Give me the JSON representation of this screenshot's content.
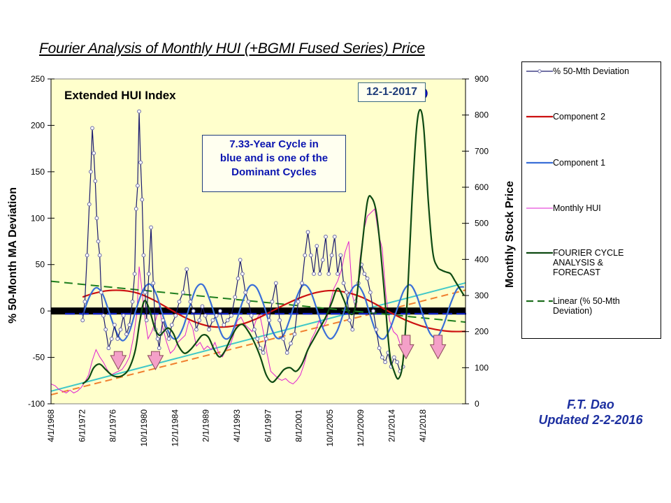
{
  "title": "Fourier Analysis of Monthly HUI (+BGMI Fused Series)  Price",
  "credit": {
    "author": "F.T. Dao",
    "updated": "Updated 2-2-2016"
  },
  "annotations": {
    "index_label": "Extended HUI  Index",
    "cycle_note": [
      "7.33-Year Cycle in",
      "blue and  is one of the",
      "Dominant Cycles"
    ],
    "date_label": "12-1-2017"
  },
  "legend": [
    {
      "label": "% 50-Mth  Deviation",
      "color": "#1a1a6e",
      "style": "line-marker"
    },
    {
      "label": "Component 2",
      "color": "#cc1010",
      "style": "line"
    },
    {
      "label": "Component 1",
      "color": "#3a6fd8",
      "style": "line"
    },
    {
      "label": "Monthly HUI",
      "color": "#e020d0",
      "style": "thin-line"
    },
    {
      "label": "FOURIER CYCLE ANALYSIS  & FORECAST",
      "color": "#0d4a12",
      "style": "line"
    },
    {
      "label": "Linear (% 50-Mth Deviation)",
      "color": "#1e6e1e",
      "style": "dashed"
    }
  ],
  "chart_data": {
    "type": "line",
    "title": "Fourier Analysis of Monthly HUI (+BGMI Fused Series)  Price",
    "xlabel": "",
    "ylabel": "% 50-Month  MA Deviation",
    "y2label": "Monthly Stock Price",
    "ylim": [
      -100,
      250
    ],
    "y2lim": [
      0,
      900
    ],
    "yticks": [
      -100,
      -50,
      0,
      50,
      100,
      150,
      200,
      250
    ],
    "y2ticks": [
      0,
      100,
      200,
      300,
      400,
      500,
      600,
      700,
      800,
      900
    ],
    "xlim": [
      1968.25,
      2024.0
    ],
    "xtick_labels": [
      "4/1/1968",
      "6/1/1972",
      "8/1/1976",
      "10/1/1980",
      "12/1/1984",
      "2/1/1989",
      "4/1/1993",
      "6/1/1997",
      "8/1/2001",
      "10/1/2005",
      "12/1/2009",
      "2/1/2014",
      "4/1/2018"
    ],
    "xtick_values": [
      1968.25,
      1972.42,
      1976.58,
      1980.75,
      1984.92,
      1989.08,
      1993.25,
      1997.42,
      2001.58,
      2005.75,
      2009.92,
      2014.08,
      2018.25
    ],
    "grid": false,
    "legend_position": "right",
    "series": [
      {
        "name": "% 50-Mth  Deviation",
        "axis": "left",
        "x": [
          1972.5,
          1972.8,
          1973.1,
          1973.4,
          1973.6,
          1973.8,
          1974.0,
          1974.2,
          1974.4,
          1974.6,
          1974.8,
          1975.0,
          1975.3,
          1975.6,
          1976.0,
          1976.4,
          1976.8,
          1977.2,
          1977.6,
          1978.0,
          1978.4,
          1978.8,
          1979.2,
          1979.5,
          1979.7,
          1979.9,
          1980.1,
          1980.3,
          1980.5,
          1980.7,
          1980.9,
          1981.1,
          1981.4,
          1981.7,
          1982.0,
          1982.3,
          1982.6,
          1982.8,
          1983.0,
          1983.3,
          1983.7,
          1984.1,
          1984.5,
          1985.0,
          1985.5,
          1986.0,
          1986.5,
          1987.0,
          1987.4,
          1987.8,
          1988.2,
          1988.6,
          1989.0,
          1989.5,
          1990.0,
          1990.5,
          1991.0,
          1991.5,
          1992.0,
          1992.5,
          1993.0,
          1993.4,
          1993.7,
          1994.0,
          1994.4,
          1994.8,
          1995.2,
          1995.6,
          1996.0,
          1996.4,
          1996.8,
          1997.2,
          1997.6,
          1998.0,
          1998.5,
          1999.0,
          1999.5,
          2000.0,
          2000.5,
          2001.0,
          2001.5,
          2002.0,
          2002.4,
          2002.8,
          2003.2,
          2003.6,
          2004.0,
          2004.4,
          2004.8,
          2005.2,
          2005.6,
          2006.0,
          2006.4,
          2006.8,
          2007.2,
          2007.6,
          2008.0,
          2008.4,
          2008.8,
          2009.2,
          2009.6,
          2010.0,
          2010.4,
          2010.8,
          2011.2,
          2011.6,
          2012.0,
          2012.4,
          2012.8,
          2013.2,
          2013.6,
          2014.0,
          2014.4,
          2014.8,
          2015.2,
          2015.6
        ],
        "y": [
          -10,
          10,
          60,
          115,
          150,
          197,
          170,
          140,
          100,
          75,
          60,
          20,
          -5,
          -20,
          -40,
          -30,
          -15,
          -30,
          -20,
          -5,
          -25,
          -15,
          10,
          40,
          110,
          135,
          215,
          160,
          120,
          60,
          20,
          -10,
          40,
          90,
          30,
          -20,
          -30,
          -40,
          -25,
          -10,
          -20,
          -30,
          -15,
          -5,
          10,
          20,
          45,
          10,
          0,
          -20,
          -10,
          5,
          -5,
          -20,
          -10,
          -5,
          0,
          -15,
          -10,
          -5,
          15,
          35,
          55,
          40,
          20,
          10,
          -5,
          -20,
          -30,
          -40,
          -45,
          -30,
          -10,
          10,
          30,
          -10,
          -30,
          -45,
          -35,
          -25,
          10,
          30,
          60,
          85,
          60,
          40,
          70,
          40,
          55,
          80,
          40,
          60,
          80,
          40,
          60,
          30,
          20,
          -10,
          -20,
          10,
          30,
          50,
          40,
          35,
          20,
          0,
          -20,
          -40,
          -50,
          -55,
          -45,
          -60,
          -50,
          -55,
          -65,
          -60
        ]
      },
      {
        "name": "Component 2",
        "axis": "left",
        "x": [
          1972.5,
          1974,
          1976,
          1978,
          1980,
          1982,
          1984,
          1986,
          1988,
          1990,
          1992,
          1994,
          1996,
          1998,
          2000,
          2002,
          2004,
          2006,
          2008,
          2010,
          2012,
          2014,
          2016,
          2018,
          2020,
          2022,
          2024
        ],
        "y": [
          15,
          19,
          22,
          22,
          19,
          12,
          3,
          -6,
          -13,
          -17,
          -17,
          -14,
          -8,
          0,
          8,
          15,
          20,
          22,
          20,
          15,
          7,
          -2,
          -10,
          -16,
          -20,
          -22,
          -22
        ]
      },
      {
        "name": "Component 1",
        "axis": "left",
        "x": [
          1972.5,
          1973.4,
          1974.3,
          1975.2,
          1976.1,
          1977.0,
          1977.9,
          1978.8,
          1979.7,
          1980.6,
          1981.5,
          1982.4,
          1983.3,
          1984.2,
          1985.1,
          1986.0,
          1986.9,
          1987.8,
          1988.7,
          1989.6,
          1990.5,
          1991.4,
          1992.3,
          1993.2,
          1994.1,
          1995.0,
          1995.9,
          1996.8,
          1997.7,
          1998.6,
          1999.5,
          2000.4,
          2001.3,
          2002.2,
          2003.1,
          2004.0,
          2004.9,
          2005.8,
          2006.7,
          2007.6,
          2008.5,
          2009.4,
          2010.3,
          2011.2,
          2012.1,
          2013.0,
          2013.9,
          2014.8,
          2015.7,
          2016.6,
          2017.5,
          2018.4,
          2019.3,
          2020.2,
          2021.1,
          2022.0,
          2022.9,
          2023.8
        ],
        "y": [
          -5,
          15,
          25,
          18,
          -2,
          -22,
          -32,
          -22,
          2,
          22,
          29,
          18,
          -5,
          -25,
          -30,
          -18,
          5,
          25,
          28,
          12,
          -10,
          -28,
          -28,
          -10,
          12,
          27,
          25,
          8,
          -15,
          -29,
          -26,
          -8,
          15,
          28,
          22,
          2,
          -20,
          -30,
          -22,
          -2,
          20,
          28,
          18,
          -5,
          -25,
          -30,
          -18,
          2,
          22,
          28,
          15,
          -8,
          -25,
          -28,
          -14,
          8,
          24,
          26
        ]
      },
      {
        "name": "Monthly HUI",
        "axis": "right",
        "x": [
          1968.25,
          1968.8,
          1969.3,
          1969.8,
          1970.3,
          1970.8,
          1971.3,
          1971.8,
          1972.3,
          1972.8,
          1973.3,
          1973.8,
          1974.3,
          1974.8,
          1975.3,
          1975.8,
          1976.3,
          1976.8,
          1977.3,
          1977.8,
          1978.3,
          1978.8,
          1979.3,
          1979.8,
          1980.1,
          1980.4,
          1980.8,
          1981.3,
          1981.8,
          1982.3,
          1982.8,
          1983.3,
          1983.8,
          1984.3,
          1984.8,
          1985.3,
          1985.8,
          1986.3,
          1986.8,
          1987.3,
          1987.8,
          1988.3,
          1988.8,
          1989.3,
          1989.8,
          1990.3,
          1990.8,
          1991.3,
          1991.8,
          1992.3,
          1992.8,
          1993.3,
          1993.8,
          1994.3,
          1994.8,
          1995.3,
          1995.8,
          1996.3,
          1996.8,
          1997.3,
          1997.8,
          1998.3,
          1998.8,
          1999.3,
          1999.8,
          2000.3,
          2000.8,
          2001.3,
          2001.8,
          2002.3,
          2002.8,
          2003.3,
          2003.8,
          2004.3,
          2004.8,
          2005.3,
          2005.8,
          2006.3,
          2006.8,
          2007.3,
          2007.8,
          2008.3,
          2008.8,
          2009.3,
          2009.8,
          2010.3,
          2010.8,
          2011.3,
          2011.8,
          2012.3,
          2012.8,
          2013.3,
          2013.8,
          2014.3,
          2014.8,
          2015.3,
          2015.6
        ],
        "y": [
          55,
          50,
          40,
          35,
          30,
          38,
          30,
          35,
          45,
          60,
          80,
          120,
          150,
          130,
          115,
          95,
          80,
          85,
          90,
          95,
          110,
          130,
          180,
          250,
          380,
          330,
          250,
          180,
          200,
          230,
          270,
          210,
          170,
          140,
          150,
          170,
          180,
          190,
          230,
          210,
          160,
          170,
          150,
          160,
          150,
          170,
          140,
          130,
          150,
          160,
          190,
          230,
          240,
          220,
          210,
          200,
          230,
          250,
          200,
          140,
          90,
          80,
          70,
          65,
          70,
          60,
          55,
          65,
          80,
          110,
          150,
          180,
          200,
          230,
          210,
          230,
          280,
          320,
          340,
          370,
          420,
          450,
          300,
          260,
          400,
          480,
          520,
          530,
          540,
          470,
          430,
          300,
          230,
          200,
          190,
          160,
          150
        ]
      },
      {
        "name": "FOURIER CYCLE ANALYSIS  & FORECAST",
        "axis": "right",
        "x": [
          1972.5,
          1973.3,
          1974.0,
          1974.8,
          1975.6,
          1976.4,
          1977.2,
          1978.0,
          1978.8,
          1979.6,
          1980.2,
          1980.8,
          1981.5,
          1982.2,
          1982.8,
          1983.4,
          1984.0,
          1984.7,
          1985.4,
          1986.2,
          1987.0,
          1987.8,
          1988.6,
          1989.4,
          1990.2,
          1990.9,
          1991.6,
          1992.4,
          1993.2,
          1994.0,
          1994.8,
          1995.6,
          1996.4,
          1997.2,
          1998.0,
          1998.8,
          1999.6,
          2000.4,
          2001.2,
          2002.0,
          2002.8,
          2003.6,
          2004.4,
          2005.2,
          2006.0,
          2006.8,
          2007.6,
          2008.4,
          2009.2,
          2010.0,
          2010.8,
          2011.4,
          2012.0,
          2012.6,
          2013.2,
          2013.8,
          2014.4,
          2015.0,
          2015.6,
          2016.2,
          2016.8,
          2017.4,
          2017.9,
          2018.4,
          2019.0,
          2019.6,
          2020.2,
          2020.8,
          2021.4,
          2022.0,
          2022.6,
          2023.2,
          2023.8
        ],
        "y": [
          55,
          70,
          100,
          110,
          95,
          80,
          75,
          80,
          100,
          150,
          230,
          285,
          260,
          210,
          190,
          200,
          210,
          195,
          160,
          140,
          150,
          170,
          190,
          185,
          150,
          130,
          145,
          180,
          210,
          220,
          200,
          170,
          130,
          80,
          60,
          75,
          95,
          100,
          90,
          110,
          150,
          180,
          210,
          240,
          280,
          320,
          290,
          250,
          270,
          420,
          560,
          570,
          530,
          420,
          280,
          140,
          90,
          70,
          120,
          300,
          560,
          760,
          815,
          760,
          560,
          420,
          380,
          370,
          365,
          360,
          340,
          320,
          300
        ]
      },
      {
        "name": "Linear (% 50-Mth Deviation)",
        "axis": "left",
        "x": [
          1968.25,
          2024.0
        ],
        "y": [
          32,
          -12
        ]
      },
      {
        "name": "Price trend (orange dashed)",
        "axis": "right",
        "x": [
          1968.25,
          2024.0
        ],
        "y": [
          25,
          315
        ]
      },
      {
        "name": "Price trend (cyan)",
        "axis": "right",
        "x": [
          1968.25,
          2024.0
        ],
        "y": [
          35,
          335
        ]
      }
    ],
    "reference_lines": [
      {
        "name": "zero-line",
        "axis": "left",
        "value": 0,
        "color": "#000000"
      },
      {
        "name": "deviation-mean-dashed",
        "axis": "left",
        "value": -3,
        "color": "#1020c0"
      }
    ],
    "markers": [
      {
        "name": "forecast-peak-dot",
        "x": 2018.0,
        "y2": 860,
        "color": "#1010e0"
      }
    ],
    "down_arrows": [
      {
        "x": 1977.3,
        "y_top": 145,
        "y_bottom": 95
      },
      {
        "x": 1982.3,
        "y_top": 145,
        "y_bottom": 95
      },
      {
        "x": 2016.0,
        "y_top": 190,
        "y_bottom": 125
      },
      {
        "x": 2020.3,
        "y_top": 190,
        "y_bottom": 125
      }
    ]
  }
}
